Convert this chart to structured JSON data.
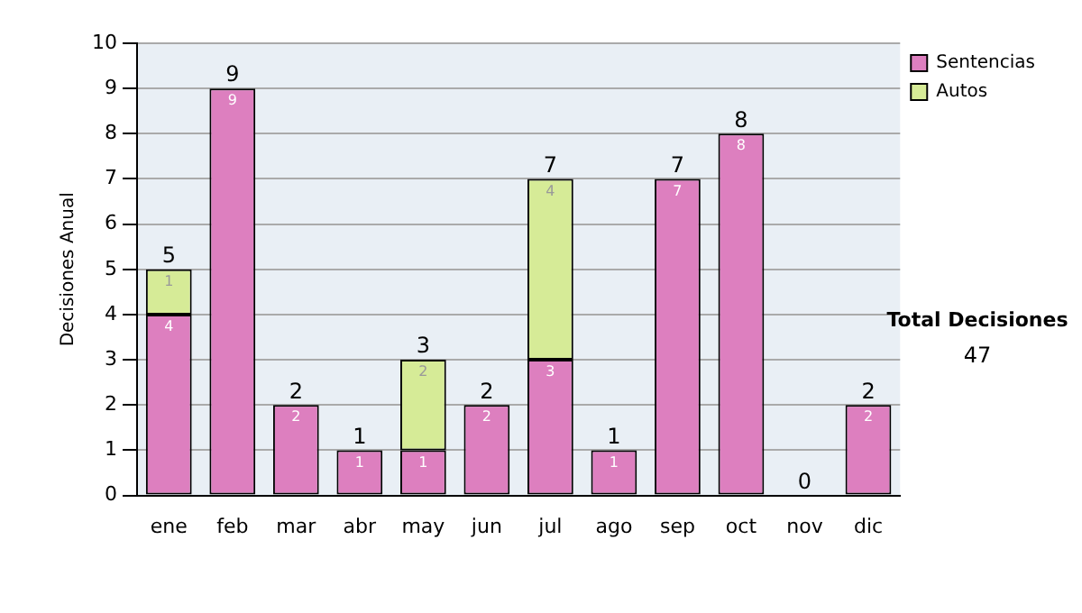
{
  "chart_data": {
    "type": "bar",
    "stacked": true,
    "ylabel": "Decisiones Anual",
    "categories": [
      "ene",
      "feb",
      "mar",
      "abr",
      "may",
      "jun",
      "jul",
      "ago",
      "sep",
      "oct",
      "nov",
      "dic"
    ],
    "series": [
      {
        "name": "Sentencias",
        "color": "#dd7fbf",
        "values": [
          4,
          9,
          2,
          1,
          1,
          2,
          3,
          1,
          7,
          8,
          0,
          2
        ],
        "value_labels": [
          "4",
          "9",
          "2",
          "1",
          "1",
          "2",
          "3",
          "1",
          "7",
          "8",
          null,
          "2"
        ]
      },
      {
        "name": "Autos",
        "color": "#d6eb97",
        "values": [
          1,
          null,
          null,
          null,
          2,
          null,
          4,
          null,
          null,
          null,
          null,
          null
        ],
        "value_labels": [
          "1",
          null,
          null,
          null,
          "2",
          null,
          "4",
          null,
          null,
          null,
          null,
          null
        ]
      }
    ],
    "totals": [
      "5",
      "9",
      "2",
      "1",
      "3",
      "2",
      "7",
      "1",
      "7",
      "8",
      "0",
      "2"
    ],
    "ylim": [
      0,
      10
    ],
    "yticks": [
      0,
      1,
      2,
      3,
      4,
      5,
      6,
      7,
      8,
      9,
      10
    ],
    "grid": "y",
    "legend": "right",
    "annotations": [
      "Total Decisiones",
      "47"
    ]
  }
}
